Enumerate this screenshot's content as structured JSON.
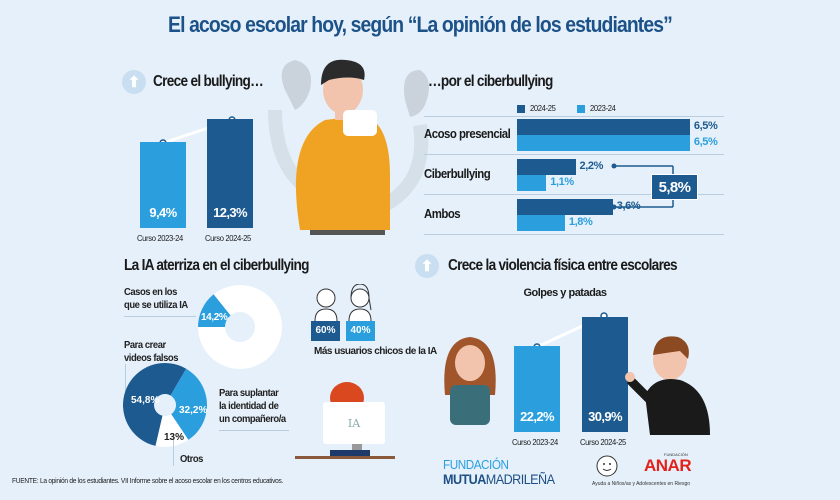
{
  "title": "El acoso escolar hoy, según “La opinión de los estudiantes”",
  "colors": {
    "background": "#e5f0fa",
    "dark_blue": "#1d5a8f",
    "light_blue": "#2b9fde",
    "title": "#1d5288"
  },
  "chart_data": [
    {
      "type": "bar",
      "title": "Crece el bullying…",
      "icon": "up-arrow-icon",
      "categories": [
        "Curso 2023-24",
        "Curso 2024-25"
      ],
      "values": [
        9.4,
        12.3
      ],
      "labels": [
        "9,4%",
        "12,3%"
      ],
      "colors": [
        "#2b9fde",
        "#1d5a8f"
      ]
    },
    {
      "type": "bar",
      "orientation": "horizontal",
      "title": "…por el ciberbullying",
      "legend": [
        "2024-25",
        "2023-24"
      ],
      "legend_placement": "top",
      "categories": [
        "Acoso presencial",
        "Ciberbullying",
        "Ambos"
      ],
      "series": [
        {
          "name": "2024-25",
          "values": [
            6.5,
            2.2,
            3.6
          ],
          "labels": [
            "6,5%",
            "2,2%",
            "3,6%"
          ],
          "color": "#1d5a8f"
        },
        {
          "name": "2023-24",
          "values": [
            6.5,
            1.1,
            1.8
          ],
          "labels": [
            "6,5%",
            "1,1%",
            "1,8%"
          ],
          "color": "#2b9fde"
        }
      ],
      "annotation": "5,8%"
    },
    {
      "type": "pie",
      "title": "La IA aterriza en el ciberbullying",
      "slices": [
        {
          "label": "Casos en los que se utiliza IA",
          "value": 14.2,
          "text": "14,2%"
        },
        {
          "label": "",
          "value": 85.8
        }
      ]
    },
    {
      "type": "pie",
      "slices": [
        {
          "label": "Para crear videos falsos",
          "value": 54.8,
          "text": "54,8%",
          "color": "#1d5a8f"
        },
        {
          "label": "Para suplantar la identidad de un compañero/a",
          "value": 32.2,
          "text": "32,2%",
          "color": "#2b9fde"
        },
        {
          "label": "Otros",
          "value": 13,
          "text": "13%",
          "color": "#ffffff"
        }
      ]
    },
    {
      "type": "bar",
      "categories": [
        "Chicos",
        "Chicas"
      ],
      "values": [
        60,
        40
      ],
      "labels": [
        "60%",
        "40%"
      ],
      "caption": "Más usuarios chicos de la IA"
    },
    {
      "type": "bar",
      "title": "Crece la violencia física entre escolares",
      "subtitle": "Golpes y patadas",
      "categories": [
        "Curso 2023-24",
        "Curso 2024-25"
      ],
      "values": [
        22.2,
        30.9
      ],
      "labels": [
        "22,2%",
        "30,9%"
      ]
    }
  ],
  "text": {
    "s1_title": "Crece el bullying…",
    "s2_title": "…por el ciberbullying",
    "s3_title": "La IA aterriza en el ciberbullying",
    "s4_title": "Crece la violencia física entre escolares",
    "s4_sub": "Golpes y patadas",
    "casos1": "Casos en los",
    "casos2": "que se utiliza IA",
    "videos1": "Para crear",
    "videos2": "videos falsos",
    "supl1": "Para suplantar",
    "supl2": "la identidad de",
    "supl3": "un compañero/a",
    "otros": "Otros",
    "mas1": "Más usuarios",
    "mas2": "chicos de la IA",
    "laptop": "IA"
  },
  "footer": "FUENTE: La opinión de los estudiantes. VII Informe sobre el acoso escolar en los centros educativos.",
  "logos": {
    "mutua_top": "FUNDACIÓN",
    "mutua_bold": "MUTUA",
    "mutua_rest": "MADRILEÑA",
    "anar_small": "FUNDACIÓN",
    "anar": "ANAR",
    "anar_tag": "Ayuda a Niños/as y Adolescentes en Riesgo"
  }
}
